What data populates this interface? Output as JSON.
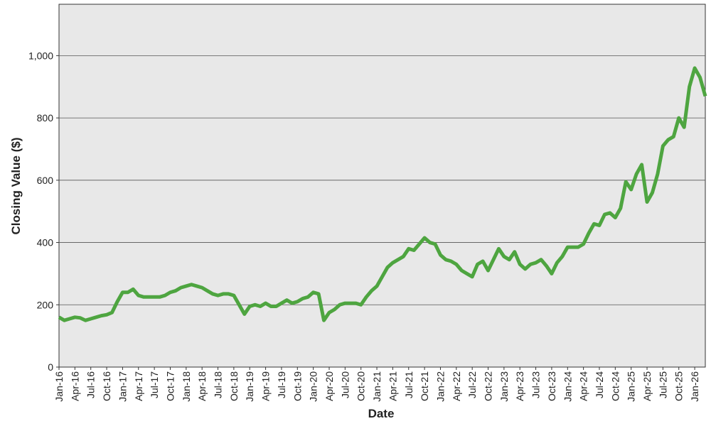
{
  "chart_data": {
    "type": "line",
    "x_label": "Date",
    "y_label": "Closing Value ($)",
    "categories": [
      "Jan-16",
      null,
      null,
      "Apr-16",
      null,
      null,
      "Jul-16",
      null,
      null,
      "Oct-16",
      null,
      null,
      "Jan-17",
      null,
      null,
      "Apr-17",
      null,
      null,
      "Jul-17",
      null,
      null,
      "Oct-17",
      null,
      null,
      "Jan-18",
      null,
      null,
      "Apr-18",
      null,
      null,
      "Jul-18",
      null,
      null,
      "Oct-18",
      null,
      null,
      "Jan-19",
      null,
      null,
      "Apr-19",
      null,
      null,
      "Jul-19",
      null,
      null,
      "Oct-19",
      null,
      null,
      "Jan-20",
      null,
      null,
      "Apr-20",
      null,
      null,
      "Jul-20",
      null,
      null,
      "Oct-20",
      null,
      null,
      "Jan-21",
      null,
      null,
      "Apr-21",
      null,
      null,
      "Jul-21",
      null,
      null,
      "Oct-21",
      null,
      null,
      "Jan-22",
      null,
      null,
      "Apr-22",
      null,
      null,
      "Jul-22",
      null,
      null,
      "Oct-22",
      null,
      null,
      "Jan-23",
      null,
      null,
      "Apr-23",
      null,
      null,
      "Jul-23",
      null,
      null,
      "Oct-23",
      null,
      null,
      "Jan-24",
      null,
      null,
      "Apr-24",
      null,
      null,
      "Jul-24",
      null,
      null,
      "Oct-24",
      null,
      null,
      "Jan-25",
      null,
      null,
      "Apr-25",
      null,
      null,
      "Jul-25",
      null,
      null,
      "Oct-25",
      null,
      null,
      "Jan-26",
      null,
      null
    ],
    "values": [
      160,
      150,
      155,
      160,
      158,
      150,
      155,
      160,
      165,
      168,
      175,
      210,
      240,
      240,
      250,
      230,
      225,
      225,
      225,
      225,
      230,
      240,
      245,
      255,
      260,
      265,
      260,
      255,
      245,
      235,
      230,
      235,
      235,
      230,
      200,
      170,
      195,
      200,
      195,
      205,
      195,
      195,
      205,
      215,
      205,
      210,
      220,
      225,
      240,
      235,
      150,
      175,
      185,
      200,
      205,
      205,
      205,
      200,
      225,
      245,
      260,
      290,
      320,
      335,
      345,
      355,
      380,
      375,
      395,
      415,
      400,
      395,
      360,
      345,
      340,
      330,
      310,
      300,
      290,
      330,
      340,
      310,
      345,
      380,
      355,
      345,
      370,
      330,
      315,
      330,
      335,
      345,
      325,
      300,
      335,
      355,
      385,
      385,
      385,
      395,
      430,
      460,
      455,
      490,
      495,
      480,
      510,
      595,
      570,
      620,
      650,
      530,
      560,
      620,
      710,
      730,
      740,
      800,
      770,
      900,
      960,
      930,
      870
    ],
    "color": "#4ea540",
    "ylim": [
      0,
      1165
    ],
    "yticks": [
      0,
      200,
      400,
      600,
      800,
      {
        "value": 1000,
        "label": "1,000"
      }
    ],
    "grid": true
  }
}
